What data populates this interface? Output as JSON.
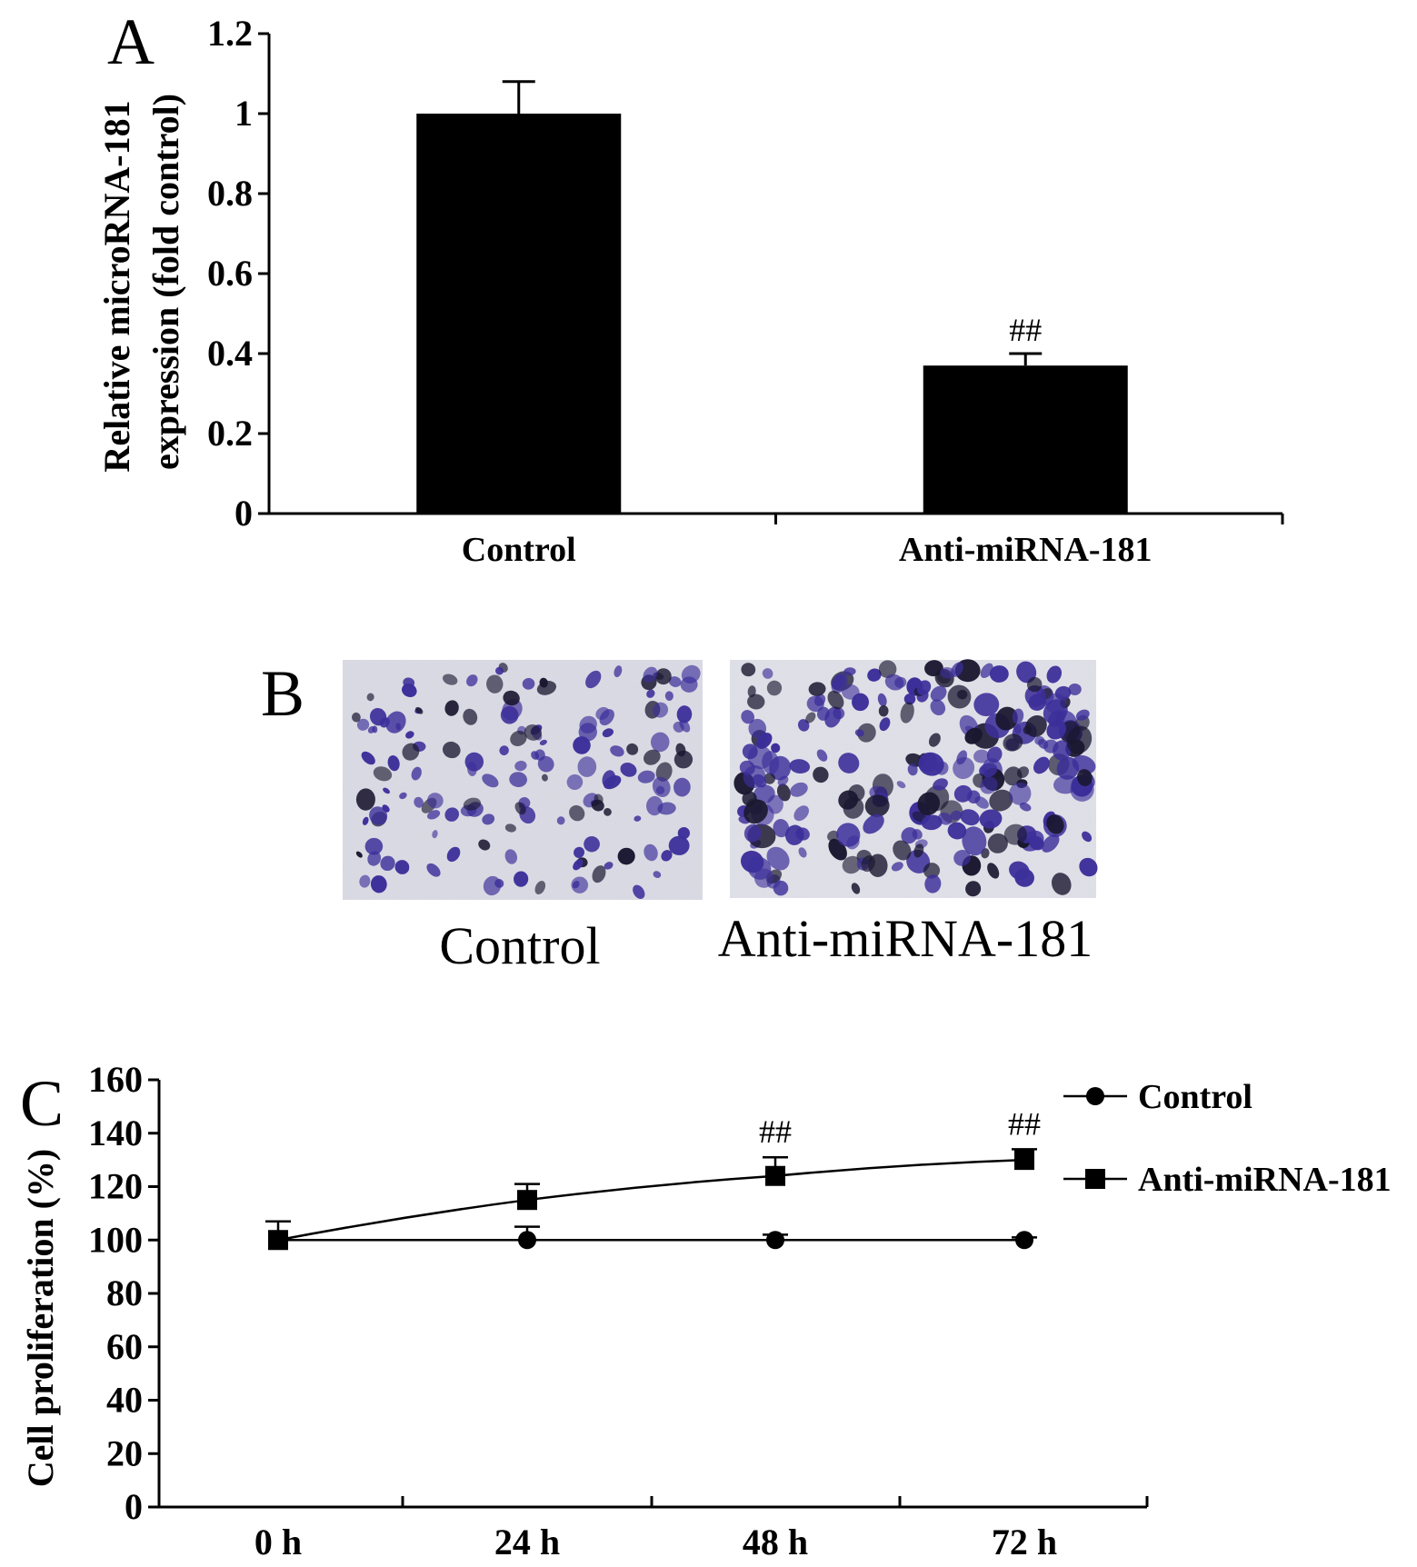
{
  "panel_a": {
    "letter": "A"
  },
  "panel_b": {
    "letter": "B",
    "image_labels": [
      "Control",
      "Anti-miRNA-181"
    ]
  },
  "panel_c": {
    "letter": "C"
  },
  "colors": {
    "bars": "#000000",
    "stain_background": "#dcdce6",
    "cell_purple": "#3c2f9a",
    "cell_dark": "#1a1730"
  },
  "chart_data": [
    {
      "type": "bar",
      "categories": [
        "Control",
        "Anti-miRNA-181"
      ],
      "values": [
        1.0,
        0.37
      ],
      "errors": [
        0.08,
        0.03
      ],
      "significance": [
        "",
        "##"
      ],
      "title": "",
      "xlabel": "",
      "ylabel": [
        "Relative microRNA-181",
        "expression (fold control)"
      ],
      "ylim": [
        0,
        1.2
      ],
      "yticks": [
        "0",
        "0.2",
        "0.4",
        "0.6",
        "0.8",
        "1",
        "1.2"
      ],
      "grid": false
    },
    {
      "type": "line",
      "x": [
        "0 h",
        "24 h",
        "48 h",
        "72 h"
      ],
      "series": [
        {
          "name": "Control",
          "marker": "circle",
          "values": [
            100,
            100,
            100,
            100
          ],
          "errors": [
            0,
            5,
            2,
            1
          ]
        },
        {
          "name": "Anti-miRNA-181",
          "marker": "square",
          "values": [
            100,
            115,
            124,
            130
          ],
          "errors": [
            7,
            6,
            7,
            4
          ]
        }
      ],
      "significance": [
        "",
        "",
        "##",
        "##"
      ],
      "title": "",
      "xlabel": "",
      "ylabel": "Cell proliferation (%)",
      "ylim": [
        0,
        160
      ],
      "yticks": [
        "0",
        "20",
        "40",
        "60",
        "80",
        "100",
        "120",
        "140",
        "160"
      ],
      "legend": "top-right",
      "grid": false
    }
  ]
}
